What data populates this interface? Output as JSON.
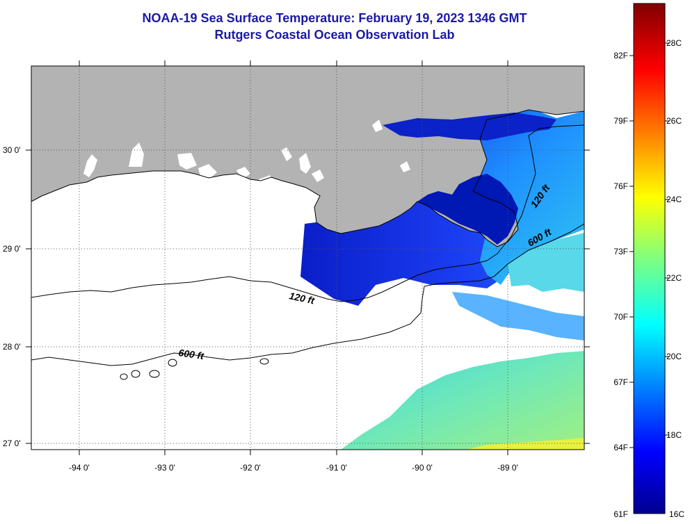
{
  "title": {
    "line1": "NOAA-19 Sea Surface Temperature:  February 19, 2023 1346 GMT",
    "line2": "Rutgers Coastal Ocean Observation Lab"
  },
  "map": {
    "lon_labels": [
      "-94 0'",
      "-93 0'",
      "-92 0'",
      "-91 0'",
      "-90 0'",
      "-89 0'"
    ],
    "lat_labels": [
      "30 0'",
      "29 0'",
      "28 0'",
      "27 0'"
    ],
    "contours": [
      {
        "name": "120 ft",
        "label": "120 ft"
      },
      {
        "name": "600 ft",
        "label": "600 ft"
      },
      {
        "name": "120 ft east",
        "label": "120 ft"
      },
      {
        "name": "600 ft east",
        "label": "600 ft"
      }
    ],
    "colors": {
      "land": "#b3b3b3",
      "cloud": "#ffffff",
      "coast": "#000000"
    }
  },
  "colorbar": {
    "fahrenheit": [
      "82F",
      "79F",
      "76F",
      "73F",
      "70F",
      "67F",
      "64F",
      "61F"
    ],
    "celsius": [
      "28C",
      "26C",
      "24C",
      "22C",
      "20C",
      "18C",
      "16C"
    ],
    "range_c": [
      16,
      29.5
    ],
    "colormap": "jet"
  }
}
